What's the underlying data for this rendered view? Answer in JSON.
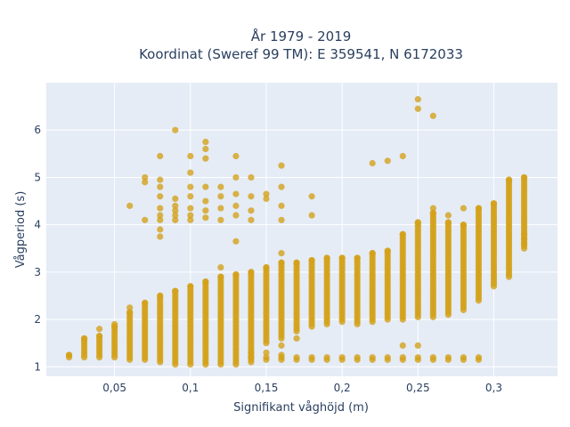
{
  "chart_data": {
    "type": "scatter",
    "title_line1": "År 1979 - 2019",
    "title_line2": "Koordinat (Sweref 99 TM): E 359541, N 6172033",
    "xlabel": "Signifikant våghöjd (m)",
    "ylabel": "Vågperiod (s)",
    "xlim": [
      0.005,
      0.342
    ],
    "ylim": [
      0.8,
      7.0
    ],
    "x_ticks": [
      0.05,
      0.1,
      0.15,
      0.2,
      0.25,
      0.3
    ],
    "x_tick_labels": [
      "0,05",
      "0,1",
      "0,15",
      "0,2",
      "0,25",
      "0,3"
    ],
    "y_ticks": [
      1,
      2,
      3,
      4,
      5,
      6
    ],
    "y_tick_labels": [
      "1",
      "2",
      "3",
      "4",
      "5",
      "6"
    ],
    "grid": true,
    "background_color": "#e5ecf6",
    "marker_color": "#d4a017",
    "columns": [
      {
        "x": 0.02,
        "main": [
          1.2,
          1.25
        ],
        "extra": []
      },
      {
        "x": 0.03,
        "main": [
          1.2,
          1.6
        ],
        "extra": []
      },
      {
        "x": 0.04,
        "main": [
          1.2,
          1.65
        ],
        "extra": [
          1.8
        ]
      },
      {
        "x": 0.05,
        "main": [
          1.2,
          1.85
        ],
        "extra": [
          1.9
        ]
      },
      {
        "x": 0.06,
        "main": [
          1.15,
          2.15
        ],
        "extra": [
          2.25,
          4.4
        ]
      },
      {
        "x": 0.07,
        "main": [
          1.15,
          2.35
        ],
        "extra": [
          4.1,
          4.9,
          5.0
        ]
      },
      {
        "x": 0.08,
        "main": [
          1.1,
          2.5
        ],
        "extra": [
          3.75,
          3.9,
          4.1,
          4.2,
          4.35,
          4.6,
          4.8,
          4.95,
          5.45
        ]
      },
      {
        "x": 0.09,
        "main": [
          1.05,
          2.6
        ],
        "extra": [
          4.1,
          4.2,
          4.3,
          4.4,
          4.55,
          6.0
        ]
      },
      {
        "x": 0.1,
        "main": [
          1.05,
          2.7
        ],
        "extra": [
          4.1,
          4.2,
          4.35,
          4.6,
          4.8,
          5.1,
          5.45
        ]
      },
      {
        "x": 0.11,
        "main": [
          1.05,
          2.8
        ],
        "extra": [
          4.15,
          4.3,
          4.5,
          4.8,
          5.4,
          5.6,
          5.75
        ]
      },
      {
        "x": 0.12,
        "main": [
          1.05,
          2.9
        ],
        "extra": [
          3.1,
          4.1,
          4.35,
          4.6,
          4.8
        ]
      },
      {
        "x": 0.13,
        "main": [
          1.05,
          2.95
        ],
        "extra": [
          3.65,
          4.2,
          4.4,
          4.65,
          5.0,
          5.45
        ]
      },
      {
        "x": 0.14,
        "main": [
          1.1,
          3.0
        ],
        "extra": [
          1.2,
          1.3,
          4.1,
          4.3,
          4.6,
          5.0
        ]
      },
      {
        "x": 0.15,
        "main": [
          1.5,
          3.1
        ],
        "extra": [
          1.15,
          1.2,
          1.3,
          4.55,
          4.65
        ]
      },
      {
        "x": 0.16,
        "main": [
          1.6,
          3.2
        ],
        "extra": [
          1.15,
          1.2,
          1.25,
          1.45,
          3.4,
          4.1,
          4.4,
          4.8,
          5.25
        ]
      },
      {
        "x": 0.17,
        "main": [
          1.75,
          3.2
        ],
        "extra": [
          1.15,
          1.2,
          1.6
        ]
      },
      {
        "x": 0.18,
        "main": [
          1.85,
          3.25
        ],
        "extra": [
          1.15,
          1.2,
          4.2,
          4.6
        ]
      },
      {
        "x": 0.19,
        "main": [
          1.9,
          3.3
        ],
        "extra": [
          1.15,
          1.2
        ]
      },
      {
        "x": 0.2,
        "main": [
          1.95,
          3.3
        ],
        "extra": [
          1.15,
          1.2
        ]
      },
      {
        "x": 0.21,
        "main": [
          1.9,
          3.3
        ],
        "extra": [
          1.15,
          1.2
        ]
      },
      {
        "x": 0.22,
        "main": [
          1.95,
          3.4
        ],
        "extra": [
          1.15,
          1.2,
          5.3
        ]
      },
      {
        "x": 0.23,
        "main": [
          2.0,
          3.45
        ],
        "extra": [
          1.15,
          1.2,
          5.35
        ]
      },
      {
        "x": 0.24,
        "main": [
          2.0,
          3.8
        ],
        "extra": [
          1.15,
          1.2,
          1.45,
          5.45
        ]
      },
      {
        "x": 0.25,
        "main": [
          2.05,
          4.05
        ],
        "extra": [
          1.15,
          1.2,
          1.45,
          6.45,
          6.65
        ]
      },
      {
        "x": 0.26,
        "main": [
          2.05,
          4.25
        ],
        "extra": [
          1.15,
          1.2,
          4.35,
          6.3
        ]
      },
      {
        "x": 0.27,
        "main": [
          2.1,
          4.05
        ],
        "extra": [
          1.15,
          1.2,
          4.2
        ]
      },
      {
        "x": 0.28,
        "main": [
          2.2,
          4.0
        ],
        "extra": [
          1.15,
          1.2,
          4.35
        ]
      },
      {
        "x": 0.29,
        "main": [
          2.4,
          4.35
        ],
        "extra": [
          1.15,
          1.2
        ]
      },
      {
        "x": 0.3,
        "main": [
          2.7,
          4.45
        ],
        "extra": []
      },
      {
        "x": 0.31,
        "main": [
          2.9,
          4.95
        ],
        "extra": []
      },
      {
        "x": 0.32,
        "main": [
          3.5,
          5.0
        ],
        "extra": [
          3.6,
          3.7,
          3.8
        ]
      }
    ]
  }
}
